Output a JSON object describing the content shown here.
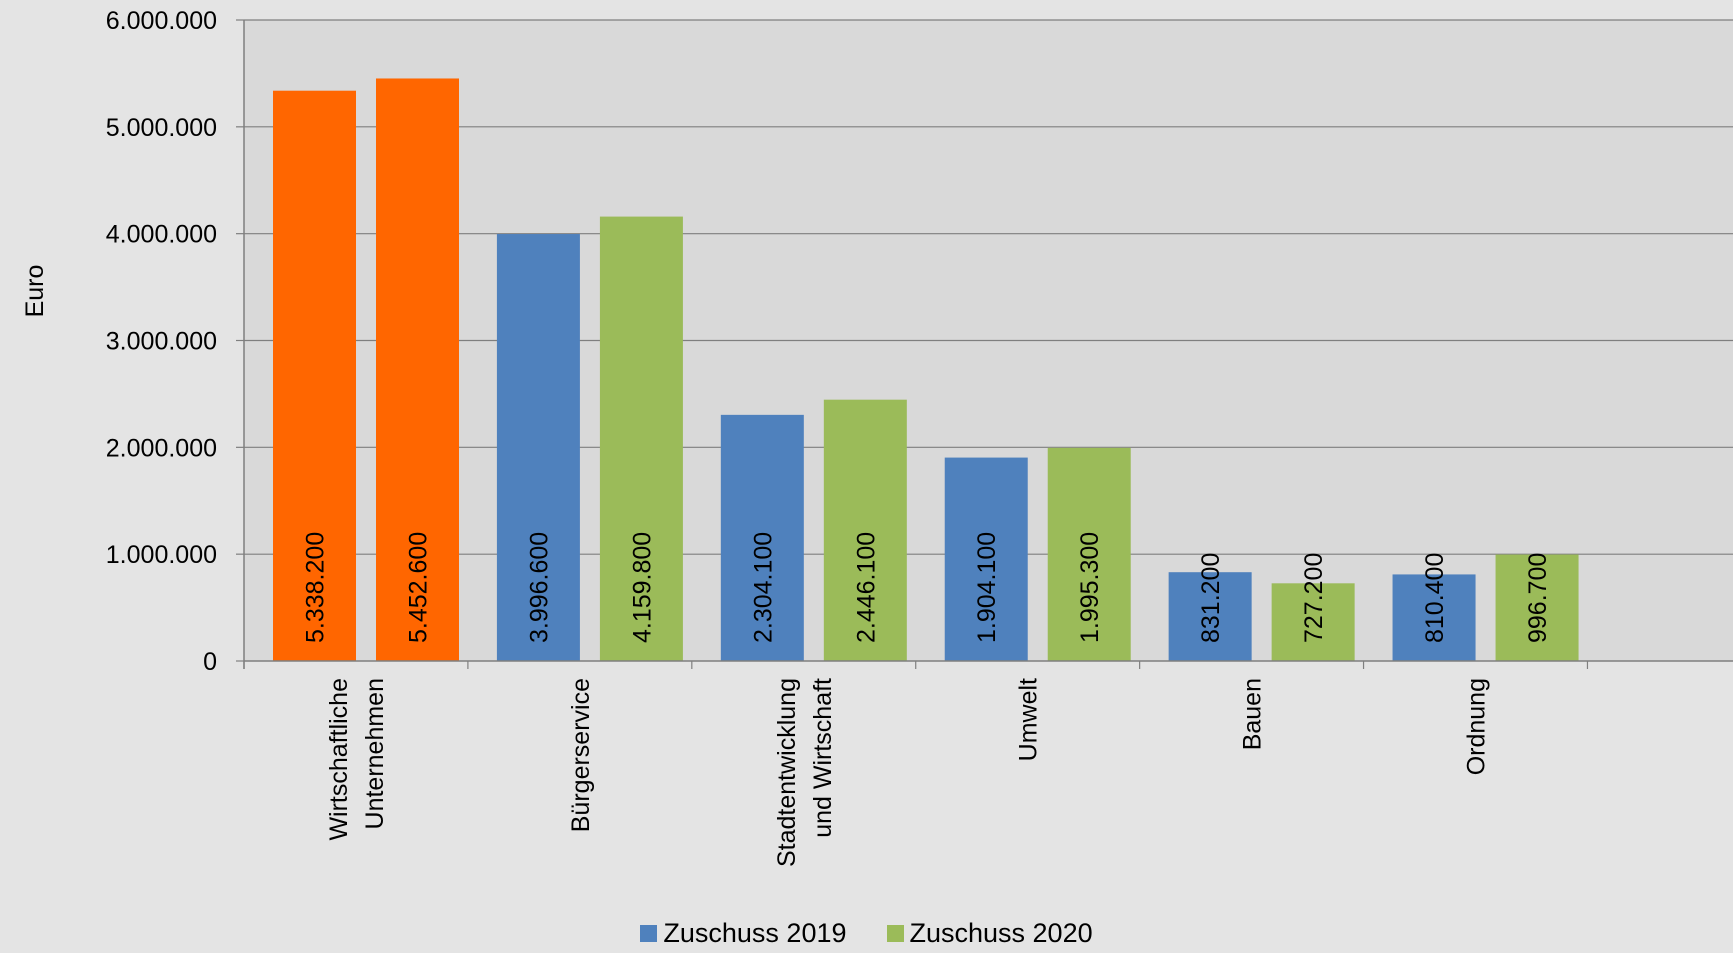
{
  "chart_data": {
    "type": "bar",
    "ylabel": "Euro",
    "xlabel": "",
    "ylim": [
      0,
      6000000
    ],
    "yticks": [
      0,
      1000000,
      2000000,
      3000000,
      4000000,
      5000000,
      6000000
    ],
    "ytick_labels": [
      "0",
      "1.000.000",
      "2.000.000",
      "3.000.000",
      "4.000.000",
      "5.000.000",
      "6.000.000"
    ],
    "categories": [
      [
        "Wirtschaftliche",
        "Unternehmen"
      ],
      [
        "Bürgerservice"
      ],
      [
        "Stadtentwicklung",
        "und Wirtschaft"
      ],
      [
        "Umwelt"
      ],
      [
        "Bauen"
      ],
      [
        "Ordnung"
      ]
    ],
    "series": [
      {
        "name": "Zuschuss 2019",
        "color": "#4f81bd",
        "values": [
          5338200,
          3996600,
          2304100,
          1904100,
          831200,
          810400
        ],
        "labels": [
          "5.338.200",
          "3.996.600",
          "2.304.100",
          "1.904.100",
          "831.200",
          "810.400"
        ]
      },
      {
        "name": "Zuschuss 2020",
        "color": "#9bbb59",
        "values": [
          5452600,
          4159800,
          2446100,
          1995300,
          727200,
          996700
        ],
        "labels": [
          "5.452.600",
          "4.159.800",
          "2.446.100",
          "1.995.300",
          "727.200",
          "996.700"
        ]
      }
    ],
    "highlight_category": 0,
    "highlight_color": "#ff6600",
    "plot_background": "#d9d9d9",
    "gridline_color": "#7f7f7f",
    "grid": true,
    "legend_position": "bottom"
  }
}
